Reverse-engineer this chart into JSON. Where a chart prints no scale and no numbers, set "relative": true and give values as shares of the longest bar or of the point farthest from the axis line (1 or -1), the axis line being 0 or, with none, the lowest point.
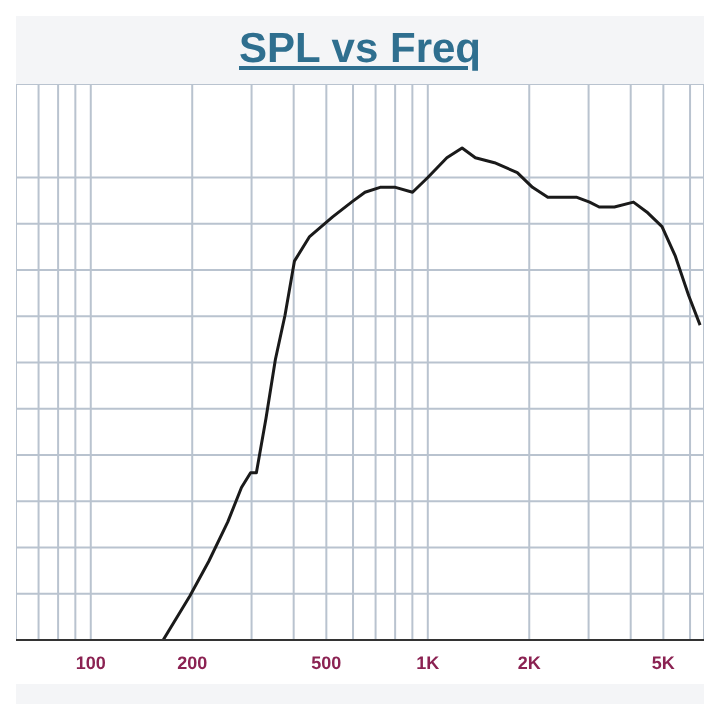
{
  "chart_data": {
    "type": "line",
    "title": "SPL vs Freq",
    "relative": true,
    "log": "x",
    "grid": true,
    "marker": "none",
    "line_style": "solid",
    "xlim": [
      60,
      6600
    ],
    "xticks": [
      {
        "value": 60,
        "label": null
      },
      {
        "value": 70,
        "label": null
      },
      {
        "value": 80,
        "label": null
      },
      {
        "value": 90,
        "label": null
      },
      100,
      {
        "value": 200,
        "label": "200"
      },
      {
        "value": 300,
        "label": null
      },
      {
        "value": 400,
        "label": null
      },
      500,
      {
        "value": 600,
        "label": null
      },
      {
        "value": 700,
        "label": null
      },
      {
        "value": 800,
        "label": null
      },
      {
        "value": 900,
        "label": null
      },
      {
        "value": 1000,
        "label": "1K"
      },
      {
        "value": 2000,
        "label": "2K"
      },
      {
        "value": 3000,
        "label": null
      },
      {
        "value": 4000,
        "label": null
      },
      {
        "value": 5000,
        "label": "5K"
      },
      {
        "value": 6000,
        "label": null
      }
    ],
    "x": [
      164,
      197,
      224,
      255,
      280,
      298,
      310,
      331,
      353,
      377,
      402,
      446,
      522,
      594,
      651,
      722,
      802,
      901,
      1000,
      1139,
      1264,
      1384,
      1577,
      1843,
      2045,
      2270,
      2486,
      2758,
      3021,
      3225,
      3578,
      4076,
      4463,
      4954,
      5427,
      5943,
      6426
    ],
    "series": [
      {
        "color": "#1a1a1a",
        "values": [
          0,
          0.09,
          0.16,
          0.24,
          0.31,
          0.34,
          0.34,
          0.45,
          0.57,
          0.66,
          0.77,
          0.82,
          0.86,
          0.89,
          0.91,
          0.92,
          0.92,
          0.91,
          0.94,
          0.98,
          1,
          0.98,
          0.97,
          0.95,
          0.92,
          0.9,
          0.9,
          0.9,
          0.89,
          0.88,
          0.88,
          0.89,
          0.87,
          0.84,
          0.78,
          0.7,
          0.64
        ]
      }
    ]
  }
}
